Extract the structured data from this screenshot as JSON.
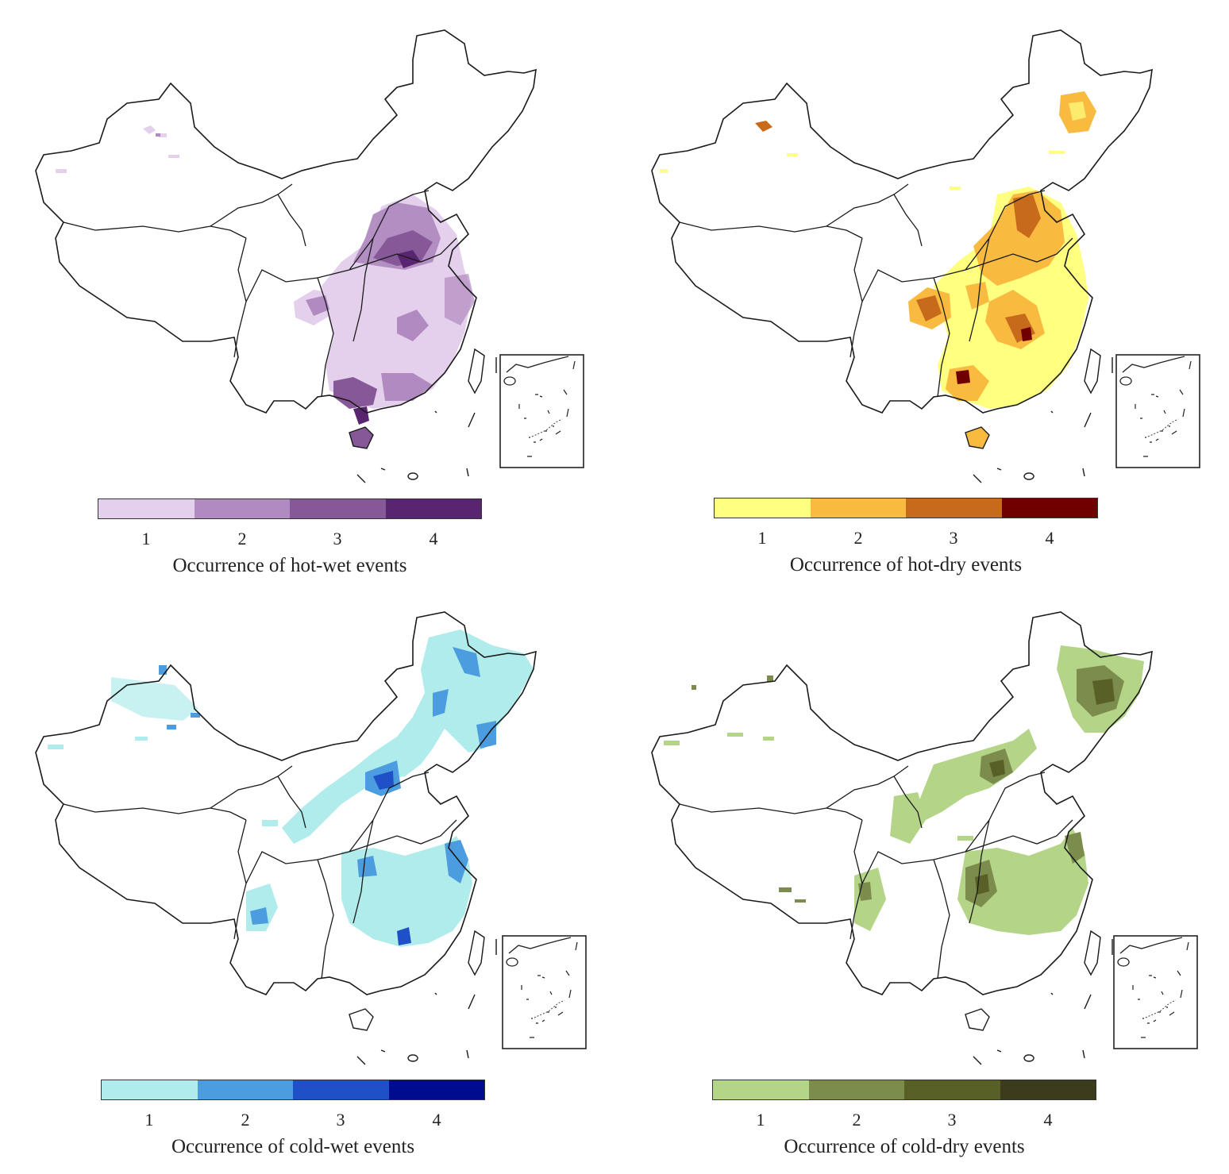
{
  "panels": [
    {
      "id": "hot-wet",
      "legend_title": "Occurrence of hot-wet events",
      "ticks": [
        "1",
        "2",
        "3",
        "4"
      ],
      "colors": [
        "#e4d0ec",
        "#b08ac0",
        "#875898",
        "#5a2570"
      ],
      "regions": [
        "north-china-plain",
        "east-china",
        "south-china-coast",
        "sichuan-basin-patch",
        "hainan",
        "xinjiang-spots"
      ]
    },
    {
      "id": "hot-dry",
      "legend_title": "Occurrence of hot-dry events",
      "ticks": [
        "1",
        "2",
        "3",
        "4"
      ],
      "colors": [
        "#ffff80",
        "#f8bb40",
        "#c86a1c",
        "#700000"
      ],
      "regions": [
        "northeast-patch",
        "north-china-plain",
        "east-china",
        "sichuan-basin-patch",
        "south-china-coast",
        "hainan",
        "xinjiang-spots"
      ]
    },
    {
      "id": "cold-wet",
      "legend_title": "Occurrence of cold-wet events",
      "ticks": [
        "1",
        "2",
        "3",
        "4"
      ],
      "colors": [
        "#b0ecec",
        "#4c9ce0",
        "#2050c8",
        "#000c90"
      ],
      "regions": [
        "northeast-china",
        "inner-mongolia-belt",
        "north-china",
        "east-china",
        "sichuan-spots",
        "xinjiang-north"
      ]
    },
    {
      "id": "cold-dry",
      "legend_title": "Occurrence of cold-dry events",
      "ticks": [
        "1",
        "2",
        "3",
        "4"
      ],
      "colors": [
        "#b4d488",
        "#7c8c4c",
        "#586028",
        "#3c3c1c"
      ],
      "regions": [
        "northeast-china",
        "north-china",
        "loess-plateau",
        "central-china",
        "east-china",
        "southwest-spots",
        "xinjiang-spots"
      ]
    }
  ]
}
